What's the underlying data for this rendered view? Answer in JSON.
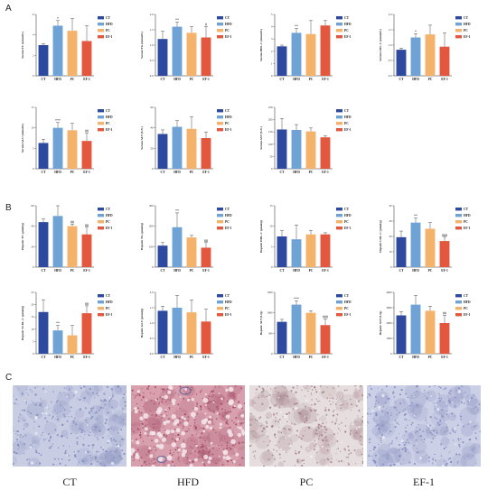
{
  "section_labels": [
    "A",
    "B",
    "C"
  ],
  "colors": {
    "CT": "#2e4aa0",
    "HFD": "#6fa3d6",
    "PC": "#f5b26b",
    "EF-1": "#e2573d"
  },
  "chart_data": [
    {
      "type": "bar",
      "ylabel": "Serum TC (mmol/L)",
      "ylim": [
        0,
        6
      ],
      "yticks": [
        0,
        2,
        4,
        6
      ],
      "categories": [
        "CT",
        "HFD",
        "PC",
        "EF-1"
      ],
      "values": [
        3.0,
        4.9,
        4.4,
        3.4
      ],
      "errors": [
        0.15,
        0.5,
        1.2,
        1.5
      ],
      "annotations": [
        "",
        "*",
        "",
        ""
      ],
      "legend": [
        "CT",
        "HFD",
        "PC",
        "EF-1"
      ]
    },
    {
      "type": "bar",
      "ylabel": "Serum TG (mmol/L)",
      "ylim": [
        0,
        2.0
      ],
      "yticks": [
        0.0,
        0.5,
        1.0,
        1.5,
        2.0
      ],
      "categories": [
        "CT",
        "HFD",
        "PC",
        "EF-1"
      ],
      "values": [
        1.2,
        1.6,
        1.4,
        1.25
      ],
      "errors": [
        0.25,
        0.15,
        0.2,
        0.35
      ],
      "annotations": [
        "",
        "**",
        "",
        "#"
      ],
      "legend": [
        "CT",
        "HFD",
        "PC",
        "EF-1"
      ]
    },
    {
      "type": "bar",
      "ylabel": "Serum HDL-C (mmol/L)",
      "ylim": [
        0,
        5
      ],
      "yticks": [
        0,
        1,
        2,
        3,
        4,
        5
      ],
      "categories": [
        "CT",
        "HFD",
        "PC",
        "EF-1"
      ],
      "values": [
        2.4,
        3.5,
        3.4,
        4.1
      ],
      "errors": [
        0.1,
        0.35,
        1.1,
        0.4
      ],
      "annotations": [
        "",
        "**",
        "",
        ""
      ],
      "legend": [
        "CT",
        "HFD",
        "PC",
        "EF-1"
      ]
    },
    {
      "type": "bar",
      "ylabel": "Serum LDL-C (mmol/L)",
      "ylim": [
        0,
        2.0
      ],
      "yticks": [
        0.0,
        0.5,
        1.0,
        1.5,
        2.0
      ],
      "categories": [
        "CT",
        "HFD",
        "PC",
        "EF-1"
      ],
      "values": [
        0.85,
        1.25,
        1.35,
        0.95
      ],
      "errors": [
        0.05,
        0.12,
        0.3,
        0.45
      ],
      "annotations": [
        "",
        "*",
        "",
        ""
      ],
      "legend": [
        "CT",
        "HFD",
        "PC",
        "EF-1"
      ]
    },
    {
      "type": "bar",
      "ylabel": "Serum GLU (mmol/L)",
      "ylim": [
        0,
        15
      ],
      "yticks": [
        0,
        5,
        10,
        15
      ],
      "categories": [
        "CT",
        "HFD",
        "PC",
        "EF-1"
      ],
      "values": [
        6.3,
        10.0,
        9.4,
        6.8
      ],
      "errors": [
        0.9,
        1.3,
        1.7,
        1.9
      ],
      "annotations": [
        "",
        "***",
        "",
        "##"
      ],
      "legend": [
        "CT",
        "HFD",
        "PC",
        "EF-1"
      ]
    },
    {
      "type": "bar",
      "ylabel": "Serum ALT (U/L)",
      "ylim": [
        0,
        60
      ],
      "yticks": [
        0,
        20,
        40,
        60
      ],
      "categories": [
        "CT",
        "HFD",
        "PC",
        "EF-1"
      ],
      "values": [
        34,
        41,
        39,
        30
      ],
      "errors": [
        4,
        6,
        12,
        6
      ],
      "annotations": [
        "",
        "",
        "",
        ""
      ],
      "legend": [
        "CT",
        "HFD",
        "PC",
        "EF-1"
      ]
    },
    {
      "type": "bar",
      "ylabel": "Serum AST (U/L)",
      "ylim": [
        0,
        250
      ],
      "yticks": [
        0,
        50,
        100,
        150,
        200,
        250
      ],
      "categories": [
        "CT",
        "HFD",
        "PC",
        "EF-1"
      ],
      "values": [
        160,
        158,
        152,
        128
      ],
      "errors": [
        45,
        22,
        14,
        6
      ],
      "annotations": [
        "",
        "",
        "",
        ""
      ],
      "legend": [
        "CT",
        "HFD",
        "PC",
        "EF-1"
      ]
    },
    {
      "type": "bar",
      "ylabel": "Hepatic TC (μmol/g)",
      "ylim": [
        0,
        60
      ],
      "yticks": [
        0,
        20,
        40,
        60
      ],
      "categories": [
        "CT",
        "HFD",
        "PC",
        "EF-1"
      ],
      "values": [
        44,
        50,
        40,
        32
      ],
      "errors": [
        3,
        10,
        2,
        7
      ],
      "annotations": [
        "",
        "",
        "##",
        "##"
      ],
      "legend": [
        "CT",
        "HFD",
        "PC",
        "EF-1"
      ]
    },
    {
      "type": "bar",
      "ylabel": "Hepatic TG (μmol/g)",
      "ylim": [
        0,
        300
      ],
      "yticks": [
        0,
        100,
        200,
        300
      ],
      "categories": [
        "CT",
        "HFD",
        "PC",
        "EF-1"
      ],
      "values": [
        105,
        195,
        145,
        95
      ],
      "errors": [
        15,
        70,
        10,
        25
      ],
      "annotations": [
        "",
        "**",
        "",
        "##"
      ],
      "legend": [
        "CT",
        "HFD",
        "PC",
        "EF-1"
      ]
    },
    {
      "type": "bar",
      "ylabel": "Hepatic HDL-C (μmol/g)",
      "ylim": [
        0,
        15
      ],
      "yticks": [
        0,
        5,
        10,
        15
      ],
      "categories": [
        "CT",
        "HFD",
        "PC",
        "EF-1"
      ],
      "values": [
        7.5,
        6.8,
        8.0,
        8.0
      ],
      "errors": [
        1.4,
        3.5,
        1.0,
        0.4
      ],
      "annotations": [
        "",
        "",
        "",
        ""
      ],
      "legend": [
        "CT",
        "HFD",
        "PC",
        "EF-1"
      ]
    },
    {
      "type": "bar",
      "ylabel": "Hepatic LDL-C (μmol/g)",
      "ylim": [
        0,
        40
      ],
      "yticks": [
        0,
        10,
        20,
        30,
        40
      ],
      "categories": [
        "CT",
        "HFD",
        "PC",
        "EF-1"
      ],
      "values": [
        19.5,
        29,
        25,
        17
      ],
      "errors": [
        4,
        3,
        4,
        2.5
      ],
      "annotations": [
        "",
        "**",
        "",
        "###"
      ],
      "legend": [
        "CT",
        "HFD",
        "PC",
        "EF-1"
      ]
    },
    {
      "type": "bar",
      "ylabel": "Hepatic VLDL-C (μmol/g)",
      "ylim": [
        0,
        25
      ],
      "yticks": [
        0,
        5,
        10,
        15,
        20,
        25
      ],
      "categories": [
        "CT",
        "HFD",
        "PC",
        "EF-1"
      ],
      "values": [
        17,
        9.5,
        7.5,
        16.5
      ],
      "errors": [
        5,
        2,
        4,
        3
      ],
      "annotations": [
        "",
        "**",
        "",
        "##"
      ],
      "legend": [
        "CT",
        "HFD",
        "PC",
        "EF-1"
      ]
    },
    {
      "type": "bar",
      "ylabel": "Hepatic GLU (μmol/g)",
      "ylim": [
        0,
        2.0
      ],
      "yticks": [
        0.0,
        0.5,
        1.0,
        1.5,
        2.0
      ],
      "categories": [
        "CT",
        "HFD",
        "PC",
        "EF-1"
      ],
      "values": [
        1.4,
        1.5,
        1.35,
        1.05
      ],
      "errors": [
        0.15,
        0.4,
        0.4,
        0.4
      ],
      "annotations": [
        "",
        "",
        "",
        ""
      ],
      "legend": [
        "CT",
        "HFD",
        "PC",
        "EF-1"
      ]
    },
    {
      "type": "bar",
      "ylabel": "Hepatic ALT (U/g)",
      "ylim": [
        0,
        1500
      ],
      "yticks": [
        0,
        500,
        1000,
        1500
      ],
      "categories": [
        "CT",
        "HFD",
        "PC",
        "EF-1"
      ],
      "values": [
        780,
        1200,
        1000,
        700
      ],
      "errors": [
        60,
        90,
        50,
        150
      ],
      "annotations": [
        "",
        "***",
        "",
        "###"
      ],
      "legend": [
        "CT",
        "HFD",
        "PC",
        "EF-1"
      ]
    },
    {
      "type": "bar",
      "ylabel": "Hepatic AST (U/g)",
      "ylim": [
        0,
        4000
      ],
      "yticks": [
        0,
        1000,
        2000,
        3000,
        4000
      ],
      "categories": [
        "CT",
        "HFD",
        "PC",
        "EF-1"
      ],
      "values": [
        2500,
        3200,
        2800,
        2000
      ],
      "errors": [
        250,
        600,
        300,
        500
      ],
      "annotations": [
        "",
        "",
        "",
        "##"
      ],
      "legend": [
        "CT",
        "HFD",
        "PC",
        "EF-1"
      ]
    }
  ],
  "histology": [
    {
      "label": "CT",
      "tissue": "#c8cde4",
      "cell": "#7f88b8",
      "dense": false
    },
    {
      "label": "HFD",
      "tissue": "#d8a0ad",
      "cell": "#a04a66",
      "dense": true
    },
    {
      "label": "PC",
      "tissue": "#e6dede",
      "cell": "#a07c86",
      "dense": false
    },
    {
      "label": "EF-1",
      "tissue": "#ccd0e6",
      "cell": "#8088bb",
      "dense": false
    }
  ]
}
